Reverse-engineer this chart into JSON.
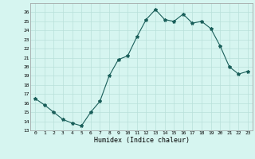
{
  "x": [
    0,
    1,
    2,
    3,
    4,
    5,
    6,
    7,
    8,
    9,
    10,
    11,
    12,
    13,
    14,
    15,
    16,
    17,
    18,
    19,
    20,
    21,
    22,
    23
  ],
  "y": [
    16.5,
    15.8,
    15.0,
    14.2,
    13.8,
    13.5,
    15.0,
    16.2,
    19.0,
    20.8,
    21.2,
    23.3,
    25.2,
    26.3,
    25.2,
    25.0,
    25.8,
    24.8,
    25.0,
    24.2,
    22.3,
    20.0,
    19.2,
    19.5
  ],
  "ylim": [
    13,
    27
  ],
  "yticks": [
    13,
    14,
    15,
    16,
    17,
    18,
    19,
    20,
    21,
    22,
    23,
    24,
    25,
    26
  ],
  "xticks": [
    0,
    1,
    2,
    3,
    4,
    5,
    6,
    7,
    8,
    9,
    10,
    11,
    12,
    13,
    14,
    15,
    16,
    17,
    18,
    19,
    20,
    21,
    22,
    23
  ],
  "xlabel": "Humidex (Indice chaleur)",
  "line_color": "#1a5f5a",
  "marker": "*",
  "marker_size": 3,
  "bg_color": "#d6f5f0",
  "grid_color": "#b8e0da",
  "fig_bg": "#d6f5f0"
}
